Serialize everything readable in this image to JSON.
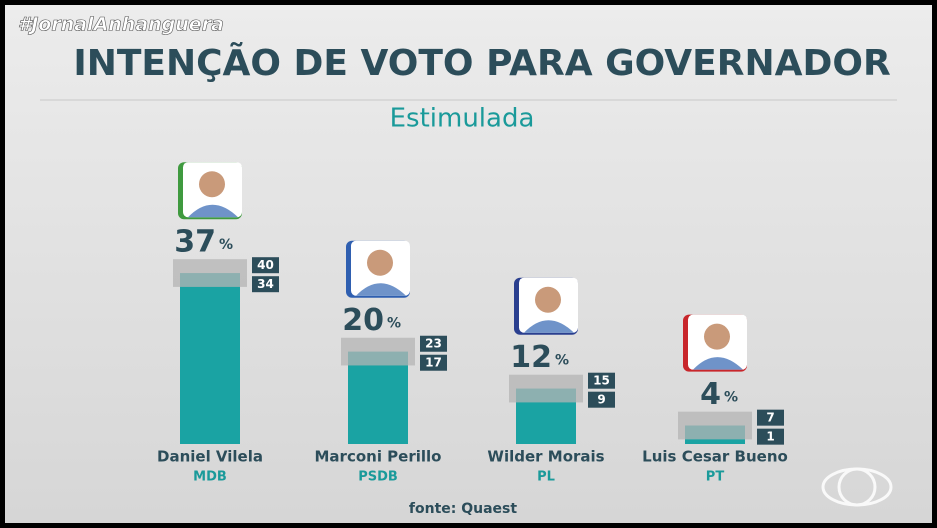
{
  "hashtag": "#JornalAnhanguera",
  "chart_data": {
    "type": "bar",
    "title": "INTENÇÃO DE VOTO PARA GOVERNADOR",
    "subtitle": "Estimulada",
    "categories": [
      "Daniel Vilela",
      "Marconi Perillo",
      "Wilder Morais",
      "Luis Cesar Bueno"
    ],
    "parties": [
      "MDB",
      "PSDB",
      "PL",
      "PT"
    ],
    "party_colors": [
      "#3f9a3f",
      "#2f5fb0",
      "#2a3f8f",
      "#c8262b"
    ],
    "values": [
      37,
      20,
      12,
      4
    ],
    "unit": "%",
    "upper": [
      40,
      23,
      15,
      7
    ],
    "lower": [
      34,
      17,
      9,
      1
    ],
    "color": "#1aa3a3",
    "source": "fonte: Quaest"
  }
}
